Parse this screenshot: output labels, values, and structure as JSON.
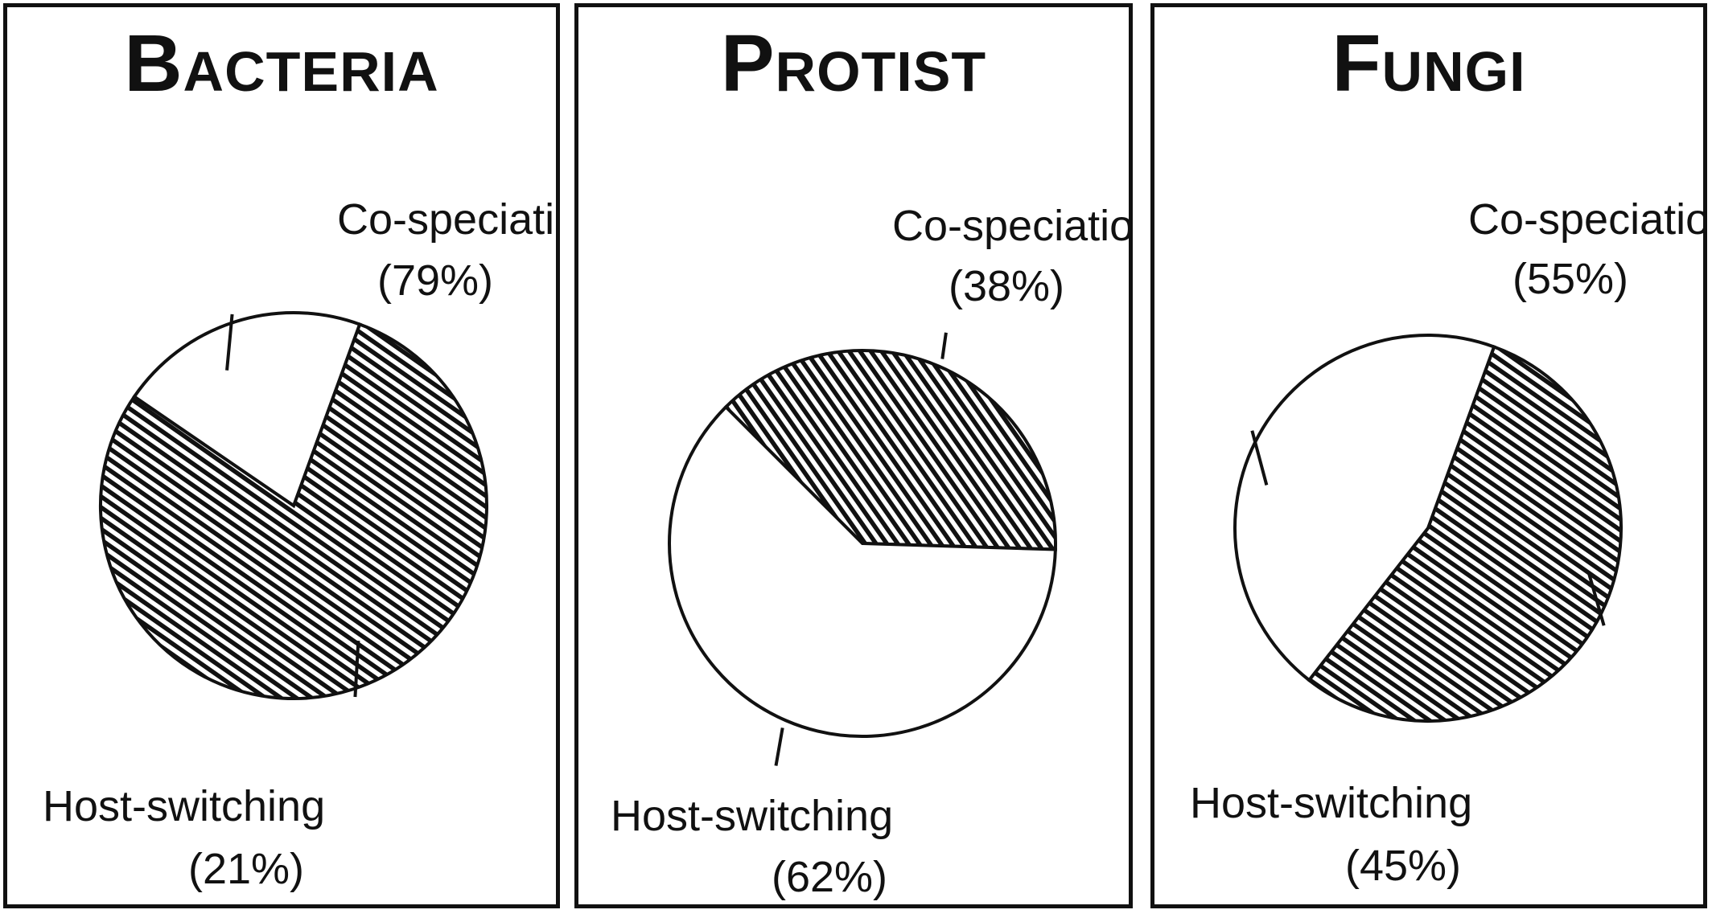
{
  "chart_data": [
    {
      "type": "pie",
      "title": "Bacteria",
      "slices": [
        {
          "label": "Co-speciation",
          "pct_label": "(79%)",
          "value": 79,
          "fill": "hatched"
        },
        {
          "label": "Host-switching",
          "pct_label": "(21%)",
          "value": 21,
          "fill": "white"
        }
      ]
    },
    {
      "type": "pie",
      "title": "Protist",
      "slices": [
        {
          "label": "Co-speciation",
          "pct_label": "(38%)",
          "value": 38,
          "fill": "hatched"
        },
        {
          "label": "Host-switching",
          "pct_label": "(62%)",
          "value": 62,
          "fill": "white"
        }
      ]
    },
    {
      "type": "pie",
      "title": "Fungi",
      "slices": [
        {
          "label": "Co-speciation",
          "pct_label": "(55%)",
          "value": 55,
          "fill": "hatched"
        },
        {
          "label": "Host-switching",
          "pct_label": "(45%)",
          "value": 45,
          "fill": "white"
        }
      ]
    }
  ],
  "colors": {
    "stroke": "#111111",
    "hatch": "#111111",
    "background": "#ffffff"
  }
}
